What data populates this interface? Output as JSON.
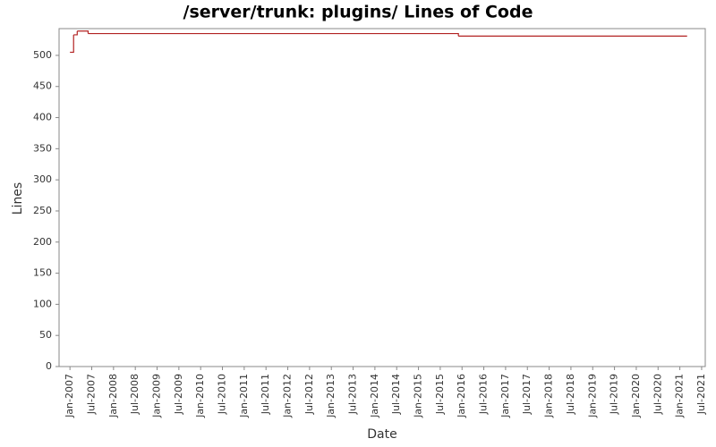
{
  "chart_data": {
    "type": "step",
    "title": "/server/trunk: plugins/ Lines of Code",
    "x_label": "Date",
    "y_label": "Lines",
    "x": [
      "2007-01",
      "2007-02",
      "2007-03",
      "2007-06",
      "2015-12",
      "2021-03"
    ],
    "series": [
      {
        "name": "Lines",
        "color": "#b22222",
        "values": [
          505,
          533,
          539,
          535,
          531,
          531
        ]
      }
    ],
    "xlim": [
      "2006-10",
      "2021-08"
    ],
    "xticks": [
      {
        "value": "2007-01",
        "label": "Jan-2007"
      },
      {
        "value": "2007-07",
        "label": "Jul-2007"
      },
      {
        "value": "2008-01",
        "label": "Jan-2008"
      },
      {
        "value": "2008-07",
        "label": "Jul-2008"
      },
      {
        "value": "2009-01",
        "label": "Jan-2009"
      },
      {
        "value": "2009-07",
        "label": "Jul-2009"
      },
      {
        "value": "2010-01",
        "label": "Jan-2010"
      },
      {
        "value": "2010-07",
        "label": "Jul-2010"
      },
      {
        "value": "2011-01",
        "label": "Jan-2011"
      },
      {
        "value": "2011-07",
        "label": "Jul-2011"
      },
      {
        "value": "2012-01",
        "label": "Jan-2012"
      },
      {
        "value": "2012-07",
        "label": "Jul-2012"
      },
      {
        "value": "2013-01",
        "label": "Jan-2013"
      },
      {
        "value": "2013-07",
        "label": "Jul-2013"
      },
      {
        "value": "2014-01",
        "label": "Jan-2014"
      },
      {
        "value": "2014-07",
        "label": "Jul-2014"
      },
      {
        "value": "2015-01",
        "label": "Jan-2015"
      },
      {
        "value": "2015-07",
        "label": "Jul-2015"
      },
      {
        "value": "2016-01",
        "label": "Jan-2016"
      },
      {
        "value": "2016-07",
        "label": "Jul-2016"
      },
      {
        "value": "2017-01",
        "label": "Jan-2017"
      },
      {
        "value": "2017-07",
        "label": "Jul-2017"
      },
      {
        "value": "2018-01",
        "label": "Jan-2018"
      },
      {
        "value": "2018-07",
        "label": "Jul-2018"
      },
      {
        "value": "2019-01",
        "label": "Jan-2019"
      },
      {
        "value": "2019-07",
        "label": "Jul-2019"
      },
      {
        "value": "2020-01",
        "label": "Jan-2020"
      },
      {
        "value": "2020-07",
        "label": "Jul-2020"
      },
      {
        "value": "2021-01",
        "label": "Jan-2021"
      },
      {
        "value": "2021-07",
        "label": "Jul-2021"
      }
    ],
    "ylim": [
      0,
      543
    ],
    "yticks": [
      0,
      50,
      100,
      150,
      200,
      250,
      300,
      350,
      400,
      450,
      500
    ],
    "grid": false
  }
}
